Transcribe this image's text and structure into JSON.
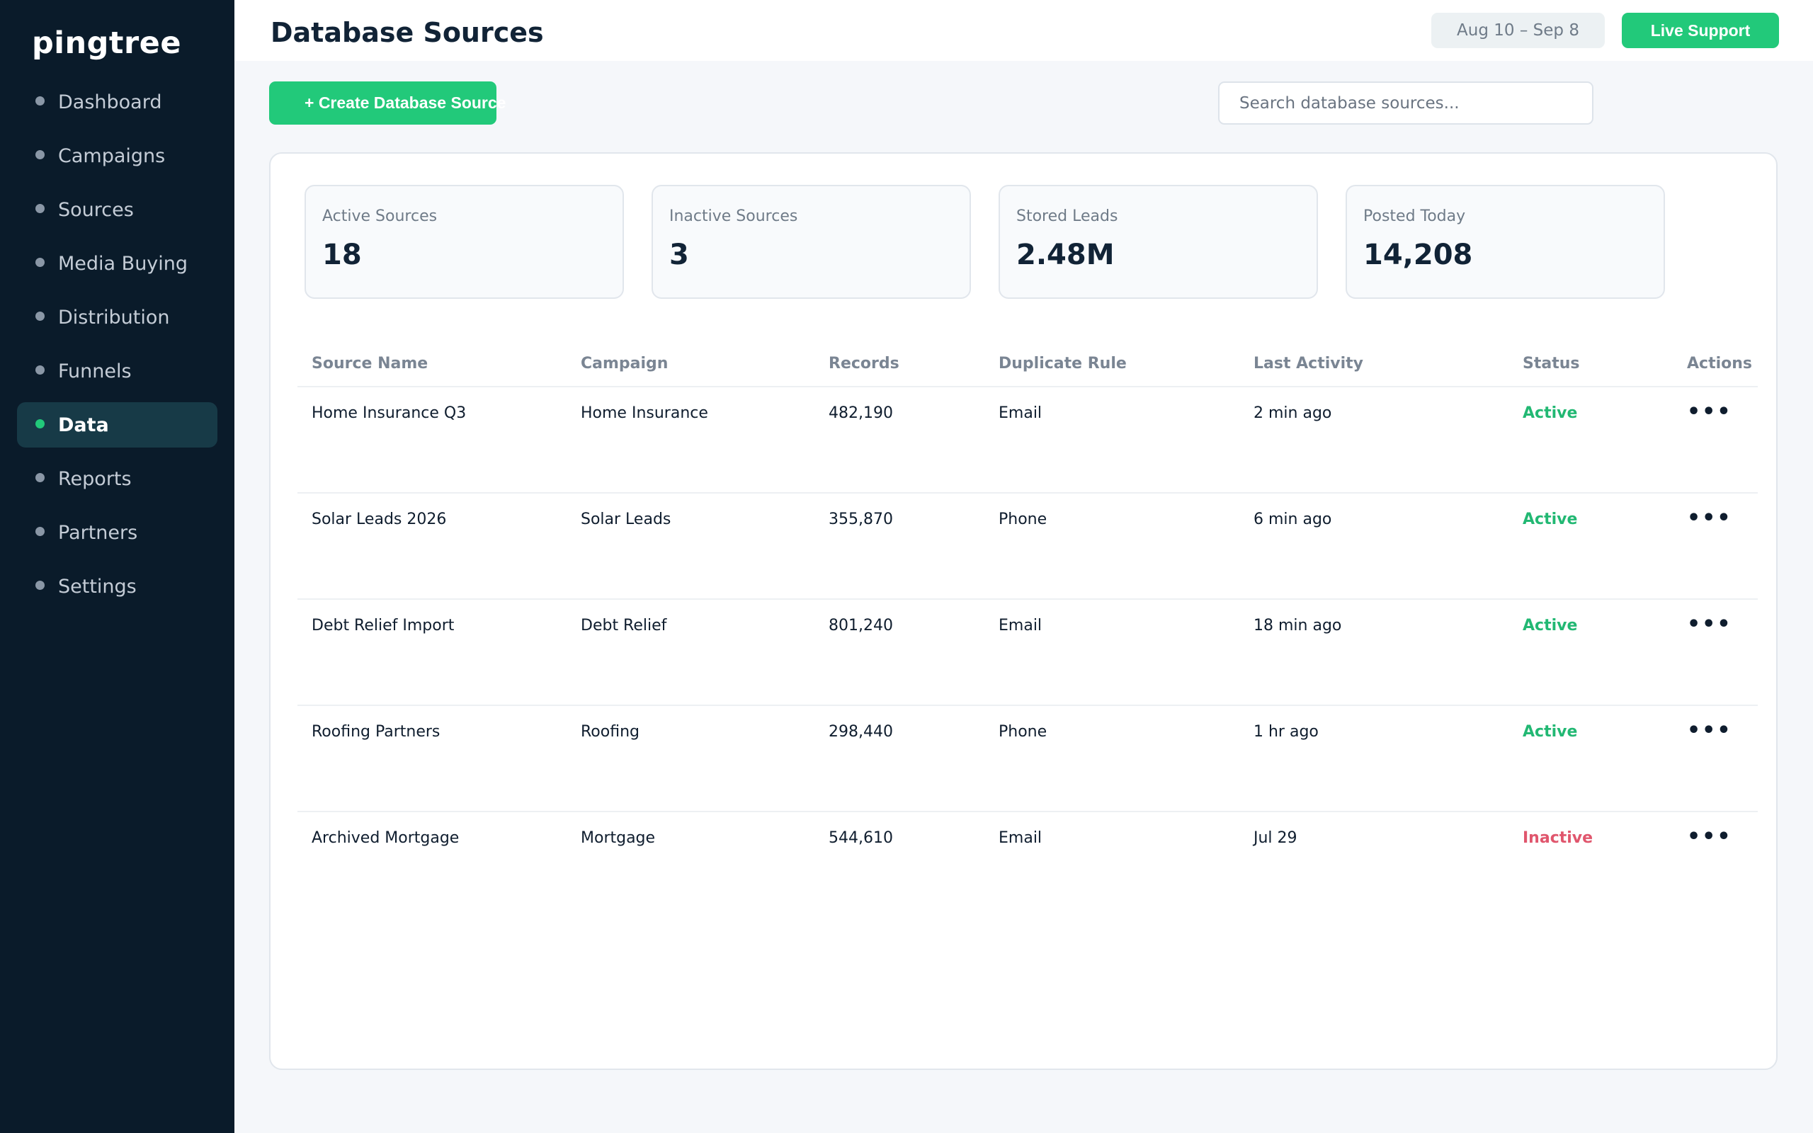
{
  "app": {
    "logo": "pingtree"
  },
  "sidebar": {
    "items": [
      {
        "label": "Dashboard",
        "active": false
      },
      {
        "label": "Campaigns",
        "active": false
      },
      {
        "label": "Sources",
        "active": false
      },
      {
        "label": "Media Buying",
        "active": false
      },
      {
        "label": "Distribution",
        "active": false
      },
      {
        "label": "Funnels",
        "active": false
      },
      {
        "label": "Data",
        "active": true
      },
      {
        "label": "Reports",
        "active": false
      },
      {
        "label": "Partners",
        "active": false
      },
      {
        "label": "Settings",
        "active": false
      }
    ]
  },
  "header": {
    "title": "Database Sources",
    "date_range": "Aug 10 – Sep 8",
    "live_support_label": "Live Support"
  },
  "toolbar": {
    "create_label": "+ Create Database Source",
    "search_placeholder": "Search database sources..."
  },
  "stats": [
    {
      "label": "Active Sources",
      "value": "18"
    },
    {
      "label": "Inactive Sources",
      "value": "3"
    },
    {
      "label": "Stored Leads",
      "value": "2.48M"
    },
    {
      "label": "Posted Today",
      "value": "14,208"
    }
  ],
  "table": {
    "columns": [
      "Source Name",
      "Campaign",
      "Records",
      "Duplicate Rule",
      "Last Activity",
      "Status",
      "Actions"
    ],
    "rows": [
      {
        "name": "Home Insurance Q3",
        "campaign": "Home Insurance",
        "records": "482,190",
        "rule": "Email",
        "activity": "2 min ago",
        "status": "Active",
        "actions": "•••"
      },
      {
        "name": "Solar Leads 2026",
        "campaign": "Solar Leads",
        "records": "355,870",
        "rule": "Phone",
        "activity": "6 min ago",
        "status": "Active",
        "actions": "•••"
      },
      {
        "name": "Debt Relief Import",
        "campaign": "Debt Relief",
        "records": "801,240",
        "rule": "Email",
        "activity": "18 min ago",
        "status": "Active",
        "actions": "•••"
      },
      {
        "name": "Roofing Partners",
        "campaign": "Roofing",
        "records": "298,440",
        "rule": "Phone",
        "activity": "1 hr ago",
        "status": "Active",
        "actions": "•••"
      },
      {
        "name": "Archived Mortgage",
        "campaign": "Mortgage",
        "records": "544,610",
        "rule": "Email",
        "activity": "Jul 29",
        "status": "Inactive",
        "actions": "•••"
      }
    ]
  },
  "colors": {
    "sidebar_bg": "#0a1b2a",
    "accent": "#22c97a",
    "active_status": "#22b873",
    "inactive_status": "#e0566d"
  }
}
